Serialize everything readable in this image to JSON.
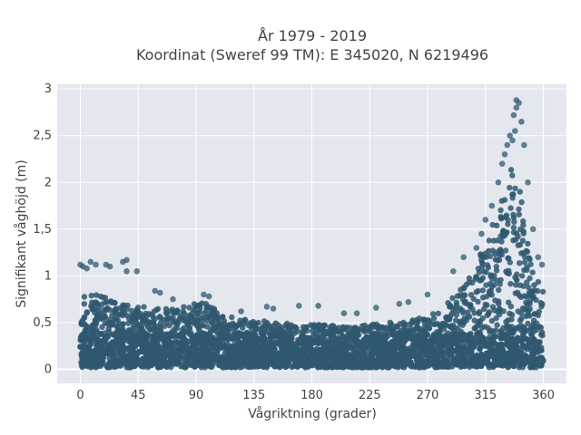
{
  "chart_data": {
    "type": "scatter",
    "title_line1": "År 1979 - 2019",
    "title_line2": "Koordinat (Sweref 99 TM): E 345020, N 6219496",
    "xlabel": "Vågriktning (grader)",
    "ylabel": "Signifikant våghöjd (m)",
    "xlim": [
      -18,
      378
    ],
    "ylim": [
      -0.15,
      3.05
    ],
    "x_ticks": [
      0,
      45,
      90,
      135,
      180,
      225,
      270,
      315,
      360
    ],
    "x_tick_labels": [
      "0",
      "45",
      "90",
      "135",
      "180",
      "225",
      "270",
      "315",
      "360"
    ],
    "y_ticks": [
      0,
      0.5,
      1,
      1.5,
      2,
      2.5,
      3
    ],
    "y_tick_labels": [
      "0",
      "0,5",
      "1",
      "1,5",
      "2",
      "2,5",
      "3"
    ],
    "grid": true,
    "marker_color": "#2f5870",
    "plot_background": "#e5e7ef",
    "envelope": {
      "direction": [
        0,
        10,
        20,
        30,
        45,
        60,
        75,
        90,
        100,
        110,
        125,
        140,
        155,
        170,
        180,
        195,
        210,
        225,
        240,
        255,
        265,
        275,
        285,
        295,
        305,
        315,
        322,
        330,
        335,
        340,
        345,
        350,
        355,
        360
      ],
      "typical_max_height": [
        0.85,
        0.8,
        0.78,
        0.72,
        0.68,
        0.65,
        0.65,
        0.72,
        0.7,
        0.6,
        0.55,
        0.52,
        0.5,
        0.48,
        0.48,
        0.47,
        0.46,
        0.48,
        0.5,
        0.52,
        0.55,
        0.6,
        0.7,
        0.85,
        1.05,
        1.35,
        1.6,
        1.9,
        2.3,
        2.2,
        1.6,
        1.2,
        1.0,
        0.9
      ]
    },
    "outliers": [
      {
        "x": 0,
        "y": 1.12
      },
      {
        "x": 2,
        "y": 1.1
      },
      {
        "x": 5,
        "y": 1.08
      },
      {
        "x": 8,
        "y": 1.15
      },
      {
        "x": 12,
        "y": 1.12
      },
      {
        "x": 20,
        "y": 1.12
      },
      {
        "x": 23,
        "y": 1.1
      },
      {
        "x": 36,
        "y": 1.05
      },
      {
        "x": 44,
        "y": 1.05
      },
      {
        "x": 36,
        "y": 1.17
      },
      {
        "x": 33,
        "y": 1.15
      },
      {
        "x": 58,
        "y": 0.84
      },
      {
        "x": 62,
        "y": 0.82
      },
      {
        "x": 72,
        "y": 0.75
      },
      {
        "x": 96,
        "y": 0.8
      },
      {
        "x": 100,
        "y": 0.78
      },
      {
        "x": 125,
        "y": 0.62
      },
      {
        "x": 145,
        "y": 0.67
      },
      {
        "x": 150,
        "y": 0.65
      },
      {
        "x": 170,
        "y": 0.68
      },
      {
        "x": 185,
        "y": 0.68
      },
      {
        "x": 205,
        "y": 0.6
      },
      {
        "x": 215,
        "y": 0.6
      },
      {
        "x": 230,
        "y": 0.66
      },
      {
        "x": 248,
        "y": 0.7
      },
      {
        "x": 255,
        "y": 0.72
      },
      {
        "x": 270,
        "y": 0.8
      },
      {
        "x": 290,
        "y": 1.05
      },
      {
        "x": 298,
        "y": 1.2
      },
      {
        "x": 308,
        "y": 1.3
      },
      {
        "x": 312,
        "y": 1.45
      },
      {
        "x": 315,
        "y": 1.6
      },
      {
        "x": 320,
        "y": 1.75
      },
      {
        "x": 325,
        "y": 2.0
      },
      {
        "x": 328,
        "y": 2.2
      },
      {
        "x": 330,
        "y": 2.3
      },
      {
        "x": 332,
        "y": 2.4
      },
      {
        "x": 334,
        "y": 2.5
      },
      {
        "x": 336,
        "y": 2.45
      },
      {
        "x": 338,
        "y": 2.55
      },
      {
        "x": 337,
        "y": 2.72
      },
      {
        "x": 339,
        "y": 2.8
      },
      {
        "x": 339,
        "y": 2.88
      },
      {
        "x": 341,
        "y": 2.85
      },
      {
        "x": 343,
        "y": 2.65
      },
      {
        "x": 345,
        "y": 2.4
      },
      {
        "x": 348,
        "y": 2.0
      },
      {
        "x": 352,
        "y": 1.5
      },
      {
        "x": 356,
        "y": 1.2
      },
      {
        "x": 359,
        "y": 1.12
      }
    ]
  }
}
